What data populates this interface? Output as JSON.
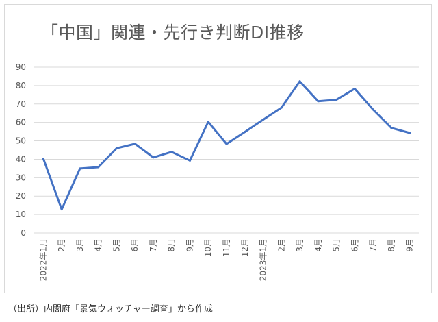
{
  "chart_data": {
    "type": "line",
    "title": "「中国」関連・先行き判断DI推移",
    "xlabel": "",
    "ylabel": "",
    "ylim": [
      0,
      90
    ],
    "yticks": [
      0,
      10,
      20,
      30,
      40,
      50,
      60,
      70,
      80,
      90
    ],
    "grid": true,
    "legend": "none",
    "categories": [
      "2022年1月",
      "2月",
      "3月",
      "4月",
      "5月",
      "6月",
      "7月",
      "8月",
      "9月",
      "10月",
      "11月",
      "12月",
      "2023年1月",
      "2月",
      "3月",
      "4月",
      "5月",
      "6月",
      "7月",
      "8月",
      "9月"
    ],
    "series": [
      {
        "values": [
          40.3,
          12.8,
          35.0,
          35.7,
          46.0,
          48.4,
          41.0,
          44.0,
          39.3,
          60.3,
          48.3,
          54.8,
          61.5,
          68.0,
          82.3,
          71.5,
          72.3,
          78.3,
          67.0,
          57.0,
          54.3
        ],
        "color": "#4472c4"
      }
    ]
  },
  "source_note": "（出所）内閣府「景気ウォッチャー調査」から作成",
  "colors": {
    "line": "#4472c4",
    "grid": "#d9d9d9",
    "axis_text": "#595959"
  }
}
